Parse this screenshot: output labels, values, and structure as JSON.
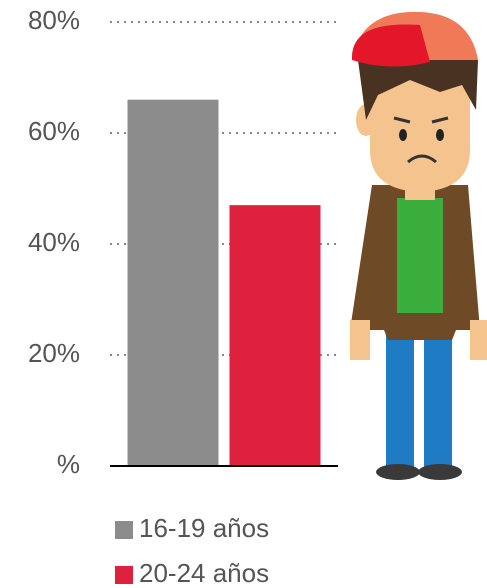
{
  "chart_data": {
    "type": "bar",
    "categories": [
      null
    ],
    "series": [
      {
        "name": "16-19 años",
        "color": "#8c8c8c",
        "values": [
          66
        ]
      },
      {
        "name": "20-24 años",
        "color": "#e0213d",
        "values": [
          47
        ]
      }
    ],
    "ylim": [
      0,
      80
    ],
    "yticks": [
      {
        "value": 0,
        "label": "%"
      },
      {
        "value": 20,
        "label": "20%"
      },
      {
        "value": 40,
        "label": "40%"
      },
      {
        "value": 60,
        "label": "60%"
      },
      {
        "value": 80,
        "label": "80%"
      }
    ],
    "grid": true
  }
}
